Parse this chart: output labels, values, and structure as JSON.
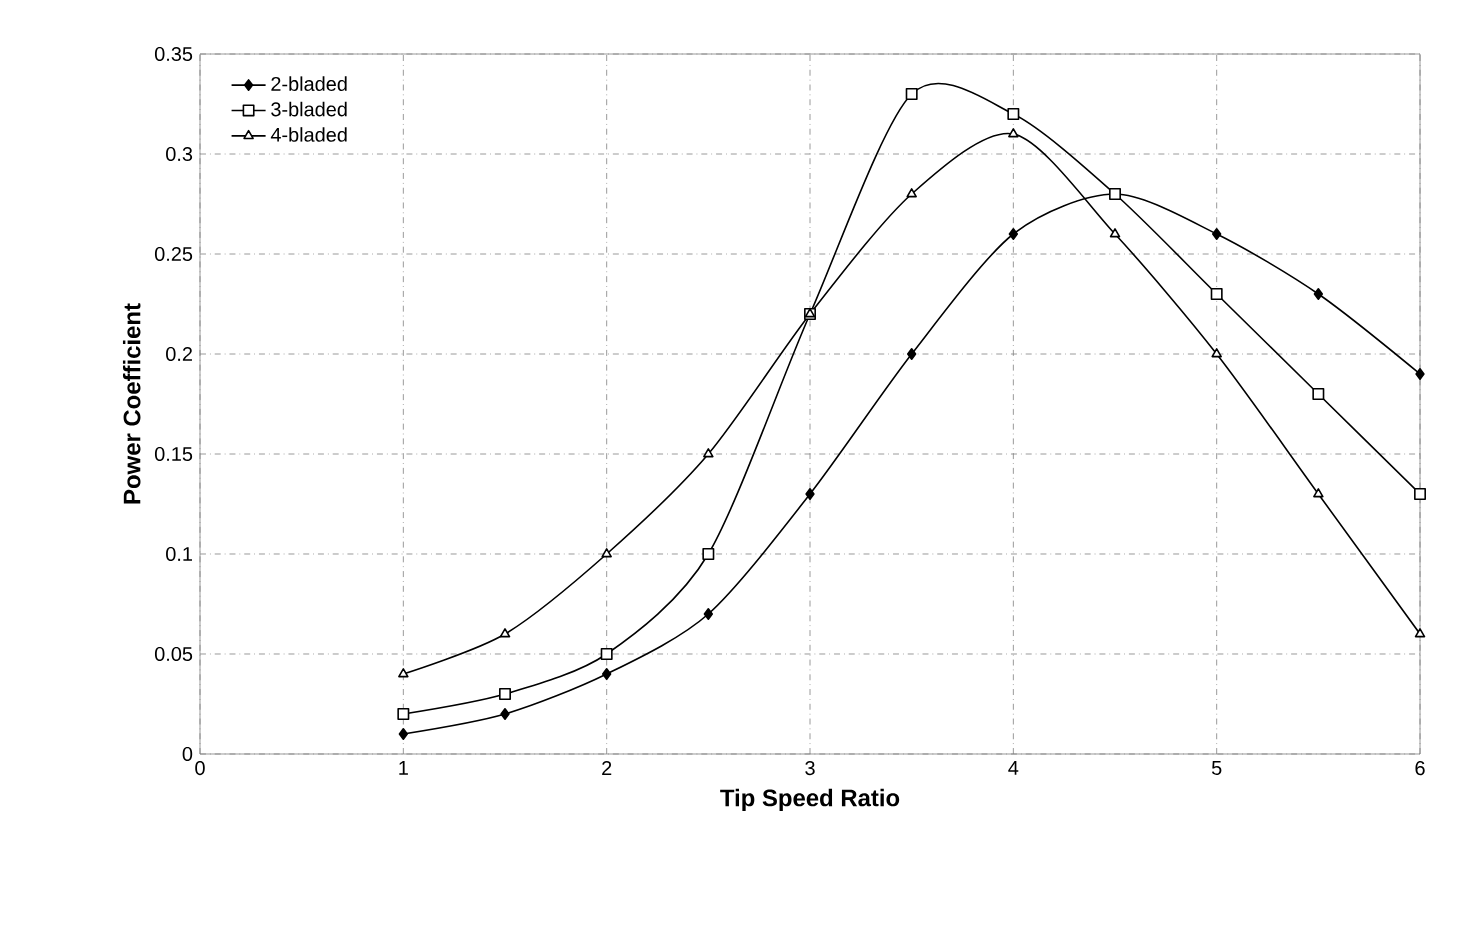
{
  "chart_data": {
    "type": "line",
    "xlabel": "Tip Speed Ratio",
    "ylabel": "Power Coefficient",
    "x": [
      1,
      1.5,
      2,
      2.5,
      3,
      3.5,
      4,
      4.5,
      5,
      5.5,
      6
    ],
    "series": [
      {
        "name": "2-bladed",
        "color": "#000000",
        "marker": "diamond",
        "values": [
          0.01,
          0.02,
          0.04,
          0.07,
          0.13,
          0.2,
          0.26,
          0.28,
          0.26,
          0.23,
          0.19
        ]
      },
      {
        "name": "3-bladed",
        "color": "#000000",
        "marker": "square",
        "values": [
          0.02,
          0.03,
          0.05,
          0.1,
          0.22,
          0.33,
          0.32,
          0.28,
          0.23,
          0.18,
          0.13
        ]
      },
      {
        "name": "4-bladed",
        "color": "#000000",
        "marker": "triangle",
        "values": [
          0.04,
          0.06,
          0.1,
          0.15,
          0.22,
          0.28,
          0.31,
          0.26,
          0.2,
          0.13,
          0.06
        ]
      }
    ],
    "xlim": [
      0,
      6
    ],
    "ylim": [
      0,
      0.35
    ],
    "xticks": [
      0,
      1,
      2,
      3,
      4,
      5,
      6
    ],
    "yticks": [
      0,
      0.05,
      0.1,
      0.15,
      0.2,
      0.25,
      0.3,
      0.35
    ],
    "grid": true,
    "legend": "top left",
    "line_style": "solid"
  }
}
